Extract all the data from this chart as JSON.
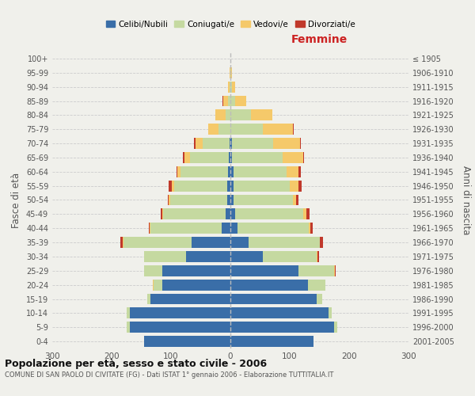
{
  "age_groups": [
    "0-4",
    "5-9",
    "10-14",
    "15-19",
    "20-24",
    "25-29",
    "30-34",
    "35-39",
    "40-44",
    "45-49",
    "50-54",
    "55-59",
    "60-64",
    "65-69",
    "70-74",
    "75-79",
    "80-84",
    "85-89",
    "90-94",
    "95-99",
    "100+"
  ],
  "birth_years": [
    "2001-2005",
    "1996-2000",
    "1991-1995",
    "1986-1990",
    "1981-1985",
    "1976-1980",
    "1971-1975",
    "1966-1970",
    "1961-1965",
    "1956-1960",
    "1951-1955",
    "1946-1950",
    "1941-1945",
    "1936-1940",
    "1931-1935",
    "1926-1930",
    "1921-1925",
    "1916-1920",
    "1911-1915",
    "1906-1910",
    "≤ 1905"
  ],
  "males": {
    "celibi": [
      145,
      170,
      170,
      135,
      115,
      115,
      75,
      65,
      15,
      8,
      6,
      5,
      4,
      3,
      2,
      0,
      0,
      0,
      0,
      0,
      0
    ],
    "coniugati": [
      0,
      5,
      5,
      5,
      15,
      30,
      70,
      115,
      120,
      105,
      95,
      90,
      80,
      65,
      45,
      20,
      8,
      4,
      1,
      0,
      0
    ],
    "vedovi": [
      0,
      0,
      0,
      0,
      1,
      0,
      0,
      1,
      1,
      2,
      3,
      4,
      5,
      10,
      12,
      18,
      18,
      8,
      3,
      1,
      0
    ],
    "divorziati": [
      0,
      0,
      0,
      0,
      0,
      0,
      1,
      4,
      1,
      2,
      2,
      5,
      2,
      2,
      2,
      0,
      0,
      1,
      0,
      0,
      0
    ]
  },
  "females": {
    "nubili": [
      140,
      175,
      165,
      145,
      130,
      115,
      55,
      30,
      12,
      8,
      5,
      5,
      5,
      3,
      2,
      0,
      0,
      0,
      0,
      0,
      0
    ],
    "coniugate": [
      0,
      5,
      5,
      10,
      30,
      60,
      90,
      120,
      120,
      115,
      100,
      95,
      90,
      85,
      70,
      55,
      35,
      8,
      3,
      1,
      0
    ],
    "vedove": [
      0,
      0,
      0,
      0,
      0,
      1,
      1,
      1,
      3,
      5,
      5,
      15,
      20,
      35,
      45,
      50,
      35,
      18,
      5,
      1,
      0
    ],
    "divorziate": [
      0,
      0,
      0,
      0,
      0,
      1,
      3,
      5,
      3,
      5,
      4,
      5,
      3,
      1,
      1,
      1,
      0,
      1,
      0,
      0,
      0
    ]
  },
  "colors": {
    "celibi": "#3a6ea8",
    "coniugati": "#c5d9a0",
    "vedovi": "#f5c96a",
    "divorziati": "#c0392b"
  },
  "xlim": 300,
  "title": "Popolazione per età, sesso e stato civile - 2006",
  "subtitle": "COMUNE DI SAN PAOLO DI CIVITATE (FG) - Dati ISTAT 1° gennaio 2006 - Elaborazione TUTTITALIA.IT",
  "ylabel": "Fasce di età",
  "ylabel_right": "Anni di nascita",
  "xlabel_femmine": "Femmine",
  "legend_labels": [
    "Celibi/Nubili",
    "Coniugati/e",
    "Vedovi/e",
    "Divorziati/e"
  ],
  "bg_color": "#f0f0eb"
}
